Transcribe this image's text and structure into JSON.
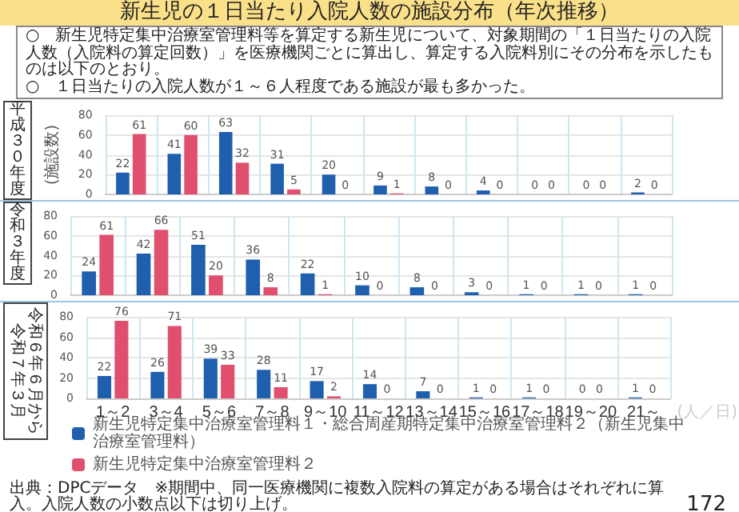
{
  "chart_data": [
    {
      "type": "bar",
      "title": "新生児の１日当たり入院人数の施設分布（年次推移）",
      "subtitle": "平成３０年度",
      "ylabel": "(施設数)",
      "annotations": [
        "○　新生児特定集中治療室管理料等を算定する新生児について、対象期間の「１日当たりの入院人数（入院料の算定回数）」を医療機関ごとに算出し、算定する入院料別にその分布を示したものは以下のとおり。",
        "○　１日当たりの入院人数が１～６人程度である施設が最も多かった。"
      ],
      "categories": [
        null,
        null,
        null,
        null,
        null,
        null,
        null,
        null,
        null,
        null,
        null
      ],
      "series": [
        {
          "color": "#1f5fae",
          "values": [
            22,
            41,
            63,
            31,
            20,
            9,
            8,
            4,
            0,
            0,
            2
          ]
        },
        {
          "color": "#e0506e",
          "values": [
            61,
            60,
            32,
            5,
            0,
            1,
            0,
            0,
            0,
            0,
            0
          ]
        }
      ],
      "ylim": [
        0,
        80
      ],
      "yticks": [
        0,
        20,
        40,
        60,
        80
      ],
      "grid": true,
      "data_labels": true,
      "tick_labels": "y"
    },
    {
      "type": "bar",
      "subtitle": "令和３年度",
      "categories": [
        null,
        null,
        null,
        null,
        null,
        null,
        null,
        null,
        null,
        null,
        null
      ],
      "series": [
        {
          "color": "#1f5fae",
          "values": [
            24,
            42,
            51,
            36,
            22,
            10,
            8,
            3,
            1,
            1,
            1
          ]
        },
        {
          "color": "#e0506e",
          "values": [
            61,
            66,
            20,
            8,
            1,
            0,
            0,
            0,
            0,
            0,
            0
          ]
        }
      ],
      "ylim": [
        0,
        80
      ],
      "yticks": [
        0,
        20,
        40,
        60,
        80
      ],
      "grid": true,
      "data_labels": true,
      "tick_labels": "y"
    },
    {
      "type": "bar",
      "subtitle": "令和６年６月から令和７年３月",
      "xlabel": "(人／日)",
      "annotations": [
        "出典：DPCデータ　※期間中、同一医療機関に複数入院料の算定がある場合はそれぞれに算入。入院人数の小数点以下は切り上げ。",
        "172"
      ],
      "categories": [
        "1～2",
        "3～4",
        "5～6",
        "7～8",
        "9～10",
        "11～12",
        "13～14",
        "15～16",
        "17～18",
        "19～20",
        "21～"
      ],
      "series": [
        {
          "name": "新生児特定集中治療室管理料１・総合周産期特定集中治療室管理料２（新生児集中治療室管理料）",
          "color": "#1f5fae",
          "values": [
            22,
            26,
            39,
            28,
            17,
            14,
            7,
            1,
            1,
            0,
            1
          ]
        },
        {
          "name": "新生児特定集中治療室管理料２",
          "color": "#e0506e",
          "values": [
            76,
            71,
            33,
            11,
            2,
            0,
            0,
            0,
            0,
            0,
            0
          ]
        }
      ],
      "ylim": [
        0,
        80
      ],
      "yticks": [
        0,
        20,
        40,
        60,
        80
      ],
      "grid": true,
      "data_labels": true,
      "legend": "bottom"
    }
  ]
}
